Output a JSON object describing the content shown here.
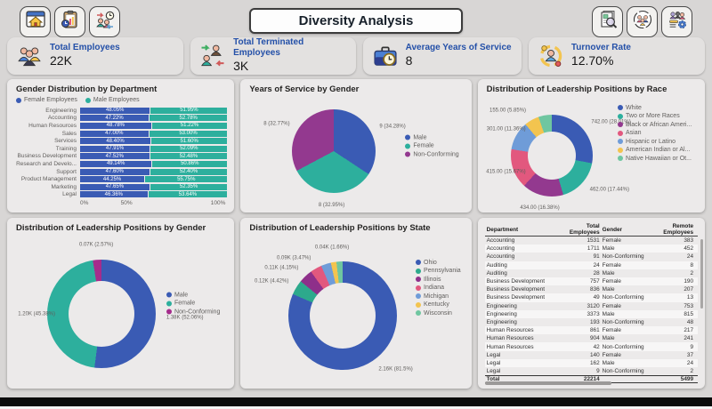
{
  "title": "Diversity Analysis",
  "nav": {
    "left_buttons": [
      {
        "icon": "home-window-icon"
      },
      {
        "icon": "report-clipboard-icon"
      },
      {
        "icon": "workforce-time-icon"
      }
    ],
    "right_buttons": [
      {
        "icon": "document-search-icon"
      },
      {
        "icon": "diversity-circle-icon"
      },
      {
        "icon": "team-settings-icon"
      }
    ]
  },
  "kpis": [
    {
      "label": "Total Employees",
      "value": "22K",
      "icon": "employees-group-icon"
    },
    {
      "label": "Total Terminated Employees",
      "value": "3K",
      "icon": "terminated-employees-icon"
    },
    {
      "label": "Average Years of Service",
      "value": "8",
      "icon": "briefcase-clock-icon"
    },
    {
      "label": "Turnover Rate",
      "value": "12.70%",
      "icon": "turnover-icon"
    }
  ],
  "palette": {
    "blue": "#3A5BB4",
    "teal": "#2DAF9D",
    "purple": "#93398F",
    "magenta": "#A52C8C",
    "pink": "#E2587E",
    "light_blue": "#6F9CD8",
    "yellow": "#F3C44F",
    "light_green": "#6FC6A0",
    "kpi_label_blue": "#2450A8"
  },
  "chart_data": [
    {
      "id": "gender_by_department",
      "type": "bar",
      "title": "Gender Distribution by Department",
      "subtype": "horizontal-100pct-stacked",
      "legend": [
        "Female Employees",
        "Male Employees"
      ],
      "series_colors": [
        "#3A5BB4",
        "#2DAF9D"
      ],
      "categories": [
        "Engineering",
        "Accounting",
        "Human Resources",
        "Sales",
        "Services",
        "Training",
        "Business Development",
        "Research and Develo...",
        "Support",
        "Product Management",
        "Marketing",
        "Legal"
      ],
      "series": [
        {
          "name": "Female Employees",
          "values": [
            48.05,
            47.22,
            48.78,
            47.0,
            48.4,
            47.91,
            47.52,
            49.14,
            47.6,
            44.25,
            47.65,
            46.36
          ]
        },
        {
          "name": "Male Employees",
          "values": [
            51.95,
            52.78,
            51.22,
            53.0,
            51.6,
            52.09,
            52.48,
            50.86,
            52.4,
            55.75,
            52.35,
            53.64
          ]
        }
      ],
      "x_ticks": [
        "0%",
        "50%",
        "100%"
      ],
      "xlim": [
        0,
        100
      ]
    },
    {
      "id": "years_of_service_by_gender",
      "type": "pie",
      "title": "Years of Service by Gender",
      "legend_position": "right",
      "slices": [
        {
          "name": "Male",
          "value": 9,
          "pct": 34.28,
          "label": "9 (34.28%)",
          "color": "#3A5BB4"
        },
        {
          "name": "Female",
          "value": 8,
          "pct": 32.95,
          "label": "8 (32.95%)",
          "color": "#2DAF9D"
        },
        {
          "name": "Non-Conforming",
          "value": 8,
          "pct": 32.77,
          "label": "8 (32.77%)",
          "color": "#93398F"
        }
      ]
    },
    {
      "id": "leadership_by_race",
      "type": "donut",
      "title": "Distribution of Leadership Positions by Race",
      "legend_position": "right",
      "slices": [
        {
          "name": "White",
          "value": 742,
          "pct": 28.01,
          "label": "742.00 (28.01%)",
          "color": "#3A5BB4"
        },
        {
          "name": "Two or More Races",
          "value": 462,
          "pct": 17.44,
          "label": "462.00 (17.44%)",
          "color": "#2DAF9D"
        },
        {
          "name": "Black or African Ameri...",
          "value": 434,
          "pct": 16.38,
          "label": "434.00 (16.38%)",
          "color": "#93398F"
        },
        {
          "name": "Asian",
          "value": 415,
          "pct": 15.67,
          "label": "415.00 (15.67%)",
          "color": "#E2587E"
        },
        {
          "name": "Hispanic or Latino",
          "value": 301,
          "pct": 11.36,
          "label": "301.00 (11.36%)",
          "color": "#6F9CD8"
        },
        {
          "name": "American Indian or Al...",
          "value": 155,
          "pct": 5.85,
          "label": "155.00 (5.85%)",
          "color": "#F3C44F"
        },
        {
          "name": "Native Hawaiian or Ot...",
          "pct": 5.29,
          "label": null,
          "color": "#6FC6A0"
        }
      ]
    },
    {
      "id": "leadership_by_gender",
      "type": "donut",
      "title": "Distribution of Leadership Positions by Gender",
      "legend_position": "right",
      "slices": [
        {
          "name": "Male",
          "pct": 52.06,
          "label": "1.38K (52.06%)",
          "color": "#3A5BB4"
        },
        {
          "name": "Female",
          "pct": 45.38,
          "label": "1.20K (45.38%)",
          "color": "#2DAF9D"
        },
        {
          "name": "Non-Conforming",
          "pct": 2.57,
          "label": "0.07K (2.57%)",
          "color": "#A52C8C"
        }
      ]
    },
    {
      "id": "leadership_by_state",
      "type": "donut",
      "title": "Distribution of Leadership Positions by State",
      "legend_position": "right",
      "slices": [
        {
          "name": "Ohio",
          "pct": 81.5,
          "label": "2.16K (81.5%)",
          "color": "#3A5BB4"
        },
        {
          "name": "Pennsylvania",
          "pct": 4.42,
          "label": "0.12K (4.42%)",
          "color": "#2DA98C"
        },
        {
          "name": "Illinois",
          "pct": 4.15,
          "label": "0.11K (4.15%)",
          "color": "#8E2F8A"
        },
        {
          "name": "Indiana",
          "pct": 3.47,
          "label": "0.09K (3.47%)",
          "color": "#E2587E"
        },
        {
          "name": "Michigan",
          "pct": 2.95,
          "label": null,
          "color": "#6F9CD8"
        },
        {
          "name": "Kentucky",
          "pct": 1.66,
          "label": "0.04K (1.66%)",
          "color": "#F3C44F"
        },
        {
          "name": "Wisconsin",
          "pct": 1.85,
          "label": null,
          "color": "#6FC6A0"
        }
      ]
    },
    {
      "id": "department_table",
      "type": "table",
      "columns": [
        "Department",
        "Total Employees",
        "Gender",
        "Remote Employees"
      ],
      "rows": [
        [
          "Accounting",
          "1531",
          "Female",
          "383"
        ],
        [
          "Accounting",
          "1711",
          "Male",
          "452"
        ],
        [
          "Accounting",
          "91",
          "Non-Conforming",
          "24"
        ],
        [
          "Auditing",
          "24",
          "Female",
          "8"
        ],
        [
          "Auditing",
          "28",
          "Male",
          "2"
        ],
        [
          "Business Development",
          "757",
          "Female",
          "190"
        ],
        [
          "Business Development",
          "836",
          "Male",
          "207"
        ],
        [
          "Business Development",
          "49",
          "Non-Conforming",
          "13"
        ],
        [
          "Engineering",
          "3120",
          "Female",
          "753"
        ],
        [
          "Engineering",
          "3373",
          "Male",
          "815"
        ],
        [
          "Engineering",
          "193",
          "Non-Conforming",
          "48"
        ],
        [
          "Human Resources",
          "861",
          "Female",
          "217"
        ],
        [
          "Human Resources",
          "904",
          "Male",
          "241"
        ],
        [
          "Human Resources",
          "42",
          "Non-Conforming",
          "9"
        ],
        [
          "Legal",
          "140",
          "Female",
          "37"
        ],
        [
          "Legal",
          "162",
          "Male",
          "24"
        ],
        [
          "Legal",
          "9",
          "Non-Conforming",
          "2"
        ]
      ],
      "total_row": [
        "Total",
        "22214",
        "",
        "5499"
      ]
    }
  ]
}
